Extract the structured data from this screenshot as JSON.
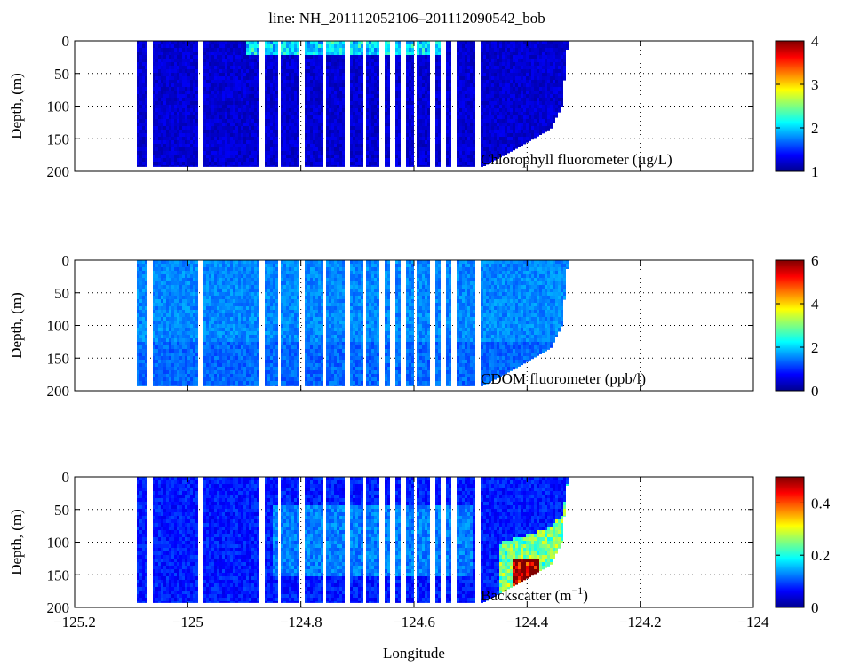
{
  "title": "line: NH_201112052106–201112090542_bob",
  "xlabel": "Longitude",
  "chart_data": [
    {
      "type": "heatmap",
      "panel": "chlorophyll",
      "annotation": "Chlorophyll fluorometer (µg/L)",
      "ylabel": "Depth, (m)",
      "xlim": [
        -125.2,
        -124.0
      ],
      "ylim": [
        0,
        200
      ],
      "y_inverted": true,
      "x_ticks": [
        -125.2,
        -125.0,
        -124.8,
        -124.6,
        -124.4,
        -124.2,
        -124.0
      ],
      "y_ticks": [
        0,
        50,
        100,
        150,
        200
      ],
      "grid": true,
      "data_x_range": [
        -125.09,
        -124.33
      ],
      "max_depth_profile": [
        [
          -125.09,
          193
        ],
        [
          -124.48,
          193
        ],
        [
          -124.42,
          165
        ],
        [
          -124.36,
          135
        ],
        [
          -124.34,
          100
        ],
        [
          -124.33,
          0
        ]
      ],
      "colorbar": {
        "range": [
          1,
          4
        ],
        "ticks": [
          1,
          2,
          3,
          4
        ],
        "colormap": "jet"
      },
      "typical_value": 1.1
    },
    {
      "type": "heatmap",
      "panel": "cdom",
      "annotation": "CDOM fluorometer (ppb/l)",
      "ylabel": "Depth, (m)",
      "xlim": [
        -125.2,
        -124.0
      ],
      "ylim": [
        0,
        200
      ],
      "y_inverted": true,
      "x_ticks": [
        -125.2,
        -125.0,
        -124.8,
        -124.6,
        -124.4,
        -124.2,
        -124.0
      ],
      "y_ticks": [
        0,
        50,
        100,
        150,
        200
      ],
      "grid": true,
      "data_x_range": [
        -125.09,
        -124.33
      ],
      "max_depth_profile": [
        [
          -125.09,
          193
        ],
        [
          -124.48,
          193
        ],
        [
          -124.42,
          165
        ],
        [
          -124.36,
          135
        ],
        [
          -124.34,
          100
        ],
        [
          -124.33,
          0
        ]
      ],
      "colorbar": {
        "range": [
          0,
          6
        ],
        "ticks": [
          0,
          2,
          4,
          6
        ],
        "colormap": "jet"
      },
      "typical_value": 1.3
    },
    {
      "type": "heatmap",
      "panel": "backscatter",
      "annotation_base": "Backscatter (m",
      "annotation_sup": "−1",
      "annotation_end": ")",
      "ylabel": "Depth, (m)",
      "xlim": [
        -125.2,
        -124.0
      ],
      "ylim": [
        0,
        200
      ],
      "y_inverted": true,
      "x_ticks": [
        -125.2,
        -125.0,
        -124.8,
        -124.6,
        -124.4,
        -124.2,
        -124.0
      ],
      "y_ticks": [
        0,
        50,
        100,
        150,
        200
      ],
      "grid": true,
      "data_x_range": [
        -125.09,
        -124.33
      ],
      "max_depth_profile": [
        [
          -125.09,
          193
        ],
        [
          -124.48,
          193
        ],
        [
          -124.42,
          165
        ],
        [
          -124.36,
          135
        ],
        [
          -124.34,
          100
        ],
        [
          -124.33,
          0
        ]
      ],
      "colorbar": {
        "range": [
          0,
          0.5
        ],
        "ticks": [
          0,
          0.2,
          0.4
        ],
        "colormap": "jet"
      },
      "typical_value": 0.05
    }
  ],
  "x_tick_labels": [
    "−125.2",
    "−125",
    "−124.8",
    "−124.6",
    "−124.4",
    "−124.2",
    "−124"
  ],
  "colors": {
    "axis": "#000000",
    "grid": "#000000",
    "background": "#ffffff"
  }
}
